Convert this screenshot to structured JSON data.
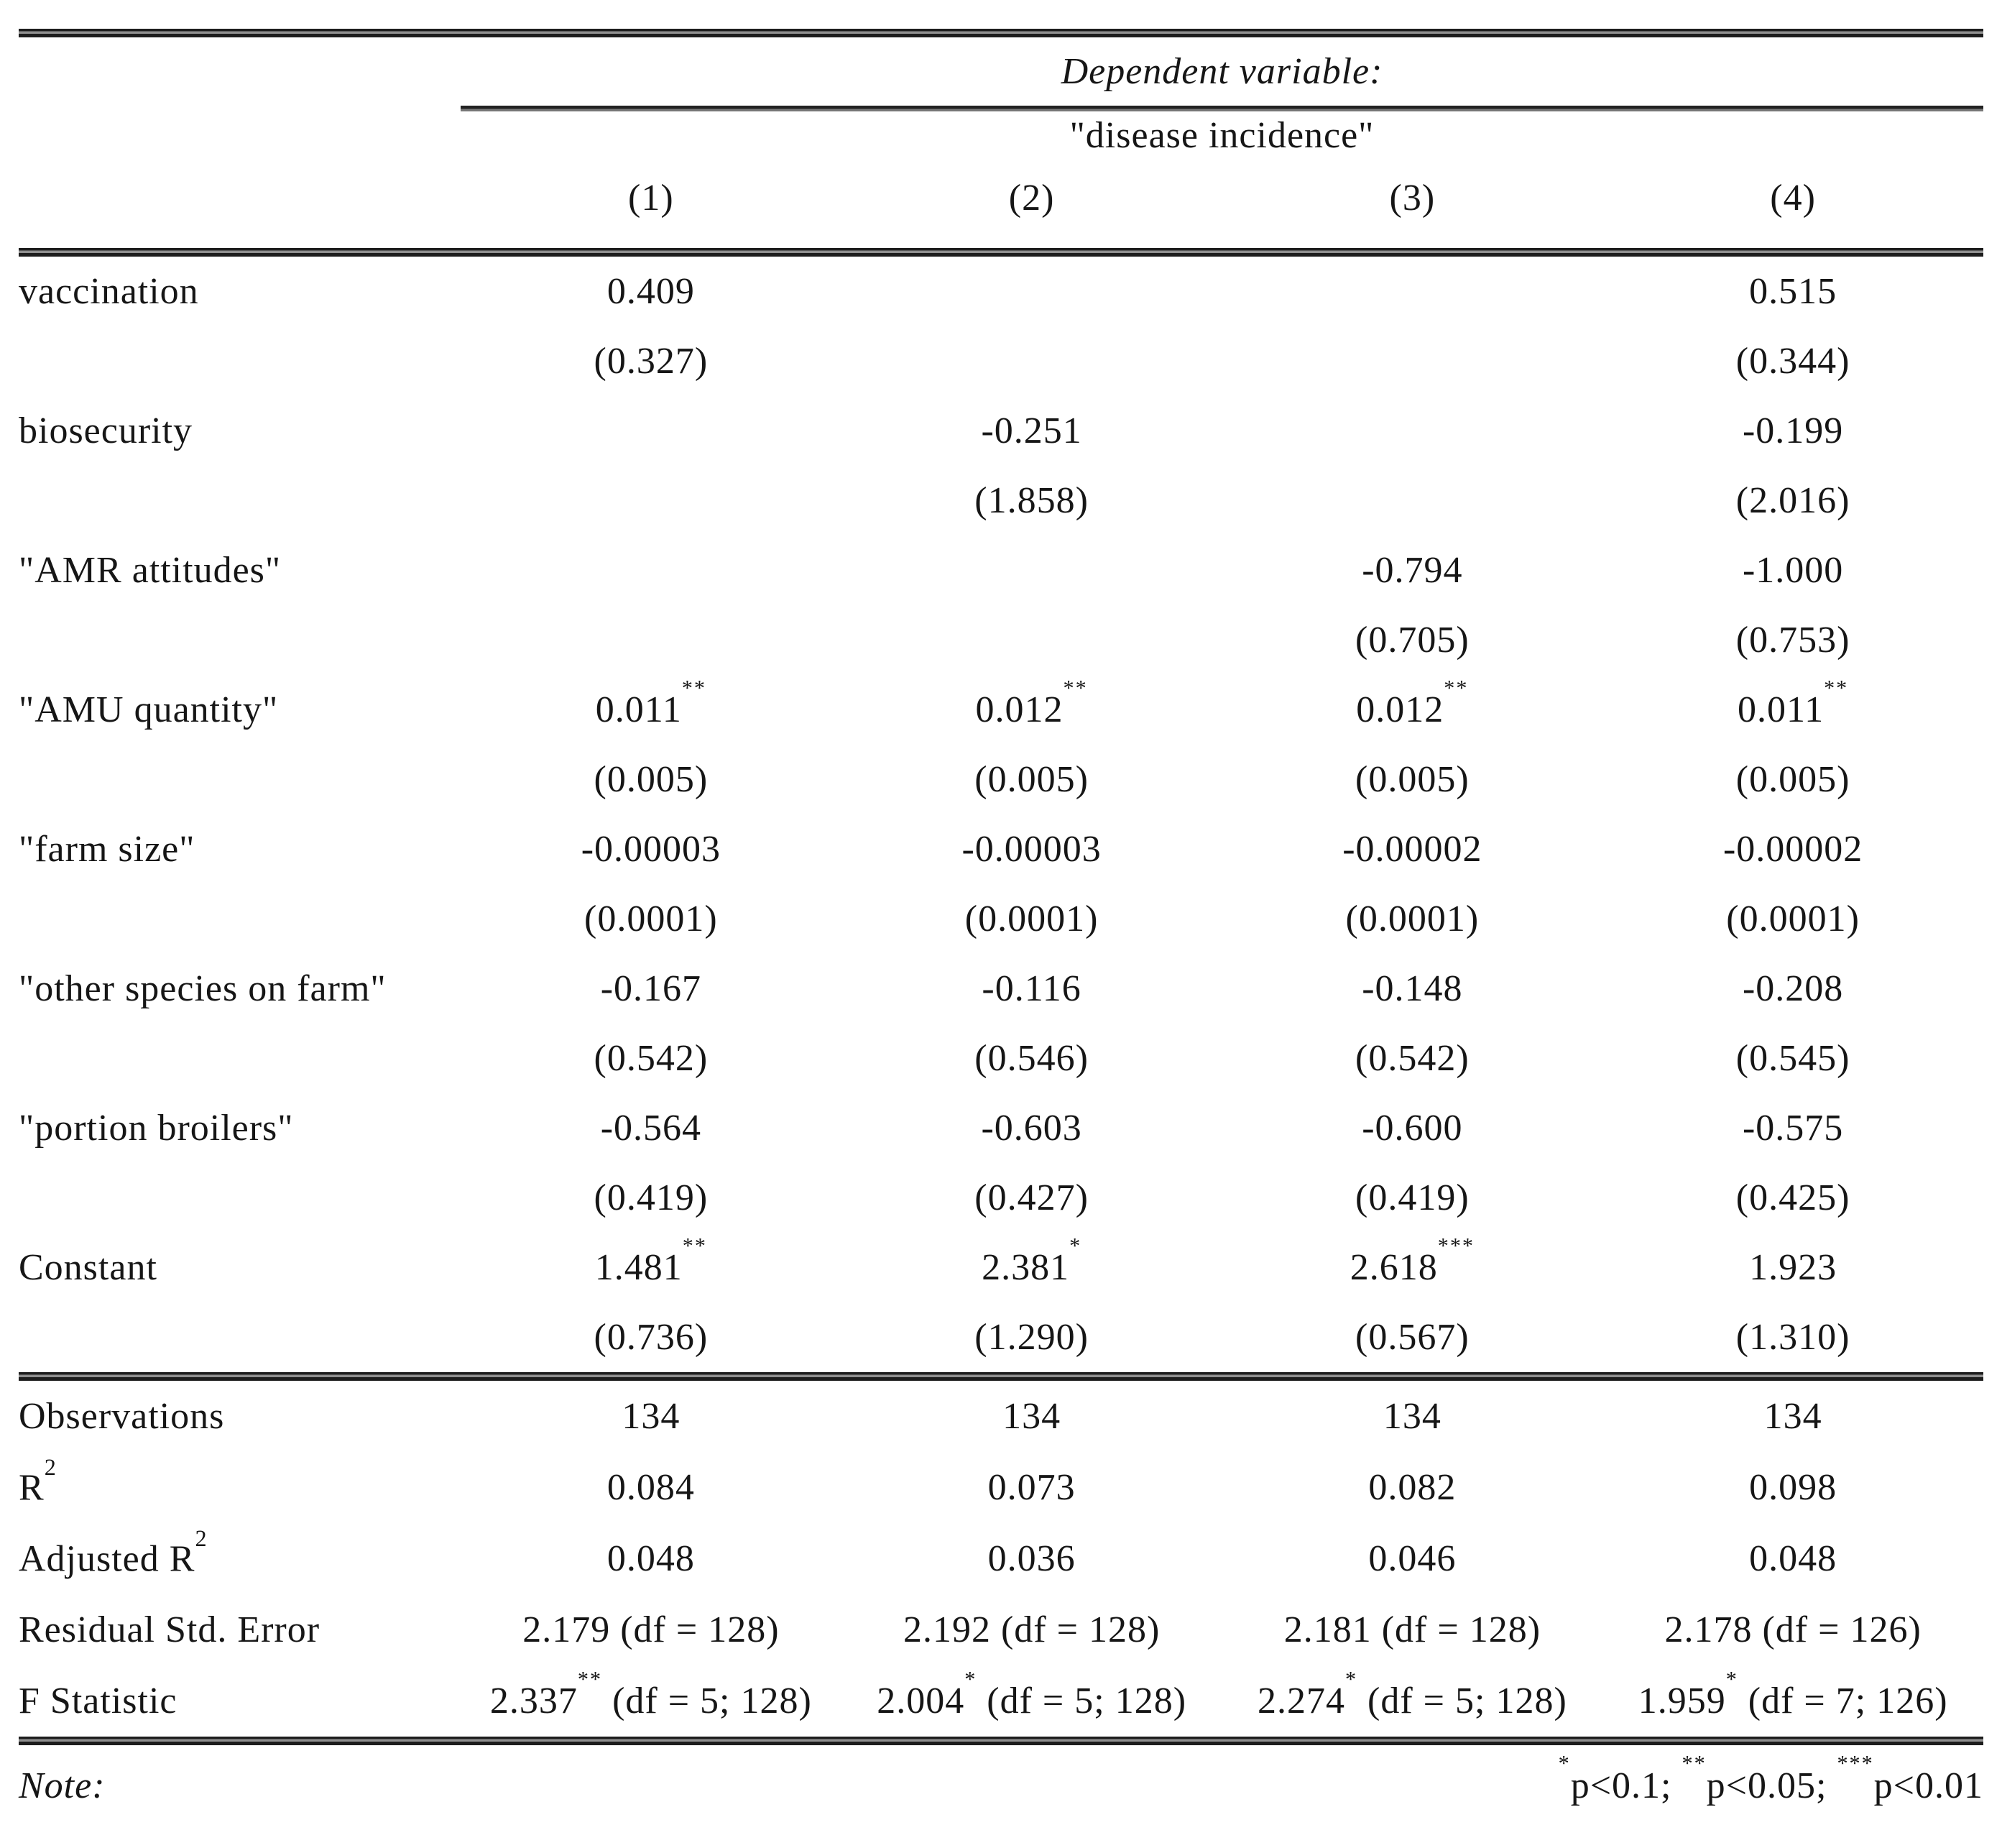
{
  "header": {
    "dependent_variable_label": "Dependent variable:",
    "dependent_variable_name": "\"disease incidence\"",
    "columns": [
      "(1)",
      "(2)",
      "(3)",
      "(4)"
    ]
  },
  "coefficients": [
    {
      "label": "vaccination",
      "cells": [
        {
          "est": "0.409",
          "stars": "",
          "se": "(0.327)"
        },
        {
          "est": "",
          "stars": "",
          "se": ""
        },
        {
          "est": "",
          "stars": "",
          "se": ""
        },
        {
          "est": "0.515",
          "stars": "",
          "se": "(0.344)"
        }
      ]
    },
    {
      "label": "biosecurity",
      "cells": [
        {
          "est": "",
          "stars": "",
          "se": ""
        },
        {
          "est": "-0.251",
          "stars": "",
          "se": "(1.858)"
        },
        {
          "est": "",
          "stars": "",
          "se": ""
        },
        {
          "est": "-0.199",
          "stars": "",
          "se": "(2.016)"
        }
      ]
    },
    {
      "label": "\"AMR attitudes\"",
      "cells": [
        {
          "est": "",
          "stars": "",
          "se": ""
        },
        {
          "est": "",
          "stars": "",
          "se": ""
        },
        {
          "est": "-0.794",
          "stars": "",
          "se": "(0.705)"
        },
        {
          "est": "-1.000",
          "stars": "",
          "se": "(0.753)"
        }
      ]
    },
    {
      "label": "\"AMU quantity\"",
      "cells": [
        {
          "est": "0.011",
          "stars": "**",
          "se": "(0.005)"
        },
        {
          "est": "0.012",
          "stars": "**",
          "se": "(0.005)"
        },
        {
          "est": "0.012",
          "stars": "**",
          "se": "(0.005)"
        },
        {
          "est": "0.011",
          "stars": "**",
          "se": "(0.005)"
        }
      ]
    },
    {
      "label": "\"farm size\"",
      "cells": [
        {
          "est": "-0.00003",
          "stars": "",
          "se": "(0.0001)"
        },
        {
          "est": "-0.00003",
          "stars": "",
          "se": "(0.0001)"
        },
        {
          "est": "-0.00002",
          "stars": "",
          "se": "(0.0001)"
        },
        {
          "est": "-0.00002",
          "stars": "",
          "se": "(0.0001)"
        }
      ]
    },
    {
      "label": "\"other species on farm\"",
      "cells": [
        {
          "est": "-0.167",
          "stars": "",
          "se": "(0.542)"
        },
        {
          "est": "-0.116",
          "stars": "",
          "se": "(0.546)"
        },
        {
          "est": "-0.148",
          "stars": "",
          "se": "(0.542)"
        },
        {
          "est": "-0.208",
          "stars": "",
          "se": "(0.545)"
        }
      ]
    },
    {
      "label": "\"portion broilers\"",
      "cells": [
        {
          "est": "-0.564",
          "stars": "",
          "se": "(0.419)"
        },
        {
          "est": "-0.603",
          "stars": "",
          "se": "(0.427)"
        },
        {
          "est": "-0.600",
          "stars": "",
          "se": "(0.419)"
        },
        {
          "est": "-0.575",
          "stars": "",
          "se": "(0.425)"
        }
      ]
    },
    {
      "label": "Constant",
      "cells": [
        {
          "est": "1.481",
          "stars": "**",
          "se": "(0.736)"
        },
        {
          "est": "2.381",
          "stars": "*",
          "se": "(1.290)"
        },
        {
          "est": "2.618",
          "stars": "***",
          "se": "(0.567)"
        },
        {
          "est": "1.923",
          "stars": "",
          "se": "(1.310)"
        }
      ]
    }
  ],
  "statistics": [
    {
      "label": "Observations",
      "label_sup": "",
      "cells": [
        {
          "text": "134",
          "stars": "",
          "suffix": ""
        },
        {
          "text": "134",
          "stars": "",
          "suffix": ""
        },
        {
          "text": "134",
          "stars": "",
          "suffix": ""
        },
        {
          "text": "134",
          "stars": "",
          "suffix": ""
        }
      ]
    },
    {
      "label": "R",
      "label_sup": "2",
      "cells": [
        {
          "text": "0.084",
          "stars": "",
          "suffix": ""
        },
        {
          "text": "0.073",
          "stars": "",
          "suffix": ""
        },
        {
          "text": "0.082",
          "stars": "",
          "suffix": ""
        },
        {
          "text": "0.098",
          "stars": "",
          "suffix": ""
        }
      ]
    },
    {
      "label": "Adjusted R",
      "label_sup": "2",
      "cells": [
        {
          "text": "0.048",
          "stars": "",
          "suffix": ""
        },
        {
          "text": "0.036",
          "stars": "",
          "suffix": ""
        },
        {
          "text": "0.046",
          "stars": "",
          "suffix": ""
        },
        {
          "text": "0.048",
          "stars": "",
          "suffix": ""
        }
      ]
    },
    {
      "label": "Residual Std. Error",
      "label_sup": "",
      "cells": [
        {
          "text": "2.179 (df = 128)",
          "stars": "",
          "suffix": ""
        },
        {
          "text": "2.192 (df = 128)",
          "stars": "",
          "suffix": ""
        },
        {
          "text": "2.181 (df = 128)",
          "stars": "",
          "suffix": ""
        },
        {
          "text": "2.178 (df = 126)",
          "stars": "",
          "suffix": ""
        }
      ]
    },
    {
      "label": "F Statistic",
      "label_sup": "",
      "cells": [
        {
          "text": "2.337",
          "stars": "**",
          "suffix": " (df = 5; 128)"
        },
        {
          "text": "2.004",
          "stars": "*",
          "suffix": " (df = 5; 128)"
        },
        {
          "text": "2.274",
          "stars": "*",
          "suffix": " (df = 5; 128)"
        },
        {
          "text": "1.959",
          "stars": "*",
          "suffix": " (df = 7; 126)"
        }
      ]
    }
  ],
  "note": {
    "label": "Note:",
    "segments": [
      {
        "stars": "*",
        "text": "p<0.1; "
      },
      {
        "stars": "**",
        "text": "p<0.05; "
      },
      {
        "stars": "***",
        "text": "p<0.01"
      }
    ]
  }
}
